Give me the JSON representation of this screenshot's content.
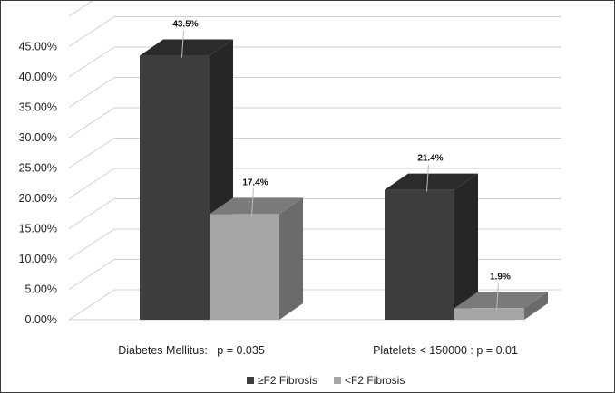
{
  "chart_data": {
    "type": "bar",
    "style": "3d-clustered",
    "categories": [
      "Diabetes Mellitus:   p = 0.035",
      "Platelets < 150000 : p = 0.01"
    ],
    "series": [
      {
        "name": "≥F2 Fibrosis",
        "values": [
          43.5,
          21.4
        ],
        "labels": [
          "43.5%",
          "21.4%"
        ],
        "color": "#3d3d3d"
      },
      {
        "name": "<F2 Fibrosis",
        "values": [
          17.4,
          1.9
        ],
        "labels": [
          "17.4%",
          "1.9%"
        ],
        "color": "#a6a6a6"
      }
    ],
    "yticks": [
      "0.00%",
      "5.00%",
      "10.00%",
      "15.00%",
      "20.00%",
      "25.00%",
      "30.00%",
      "35.00%",
      "40.00%",
      "45.00%"
    ],
    "ylim": [
      0,
      50
    ],
    "grid": true,
    "legend": "bottom"
  }
}
